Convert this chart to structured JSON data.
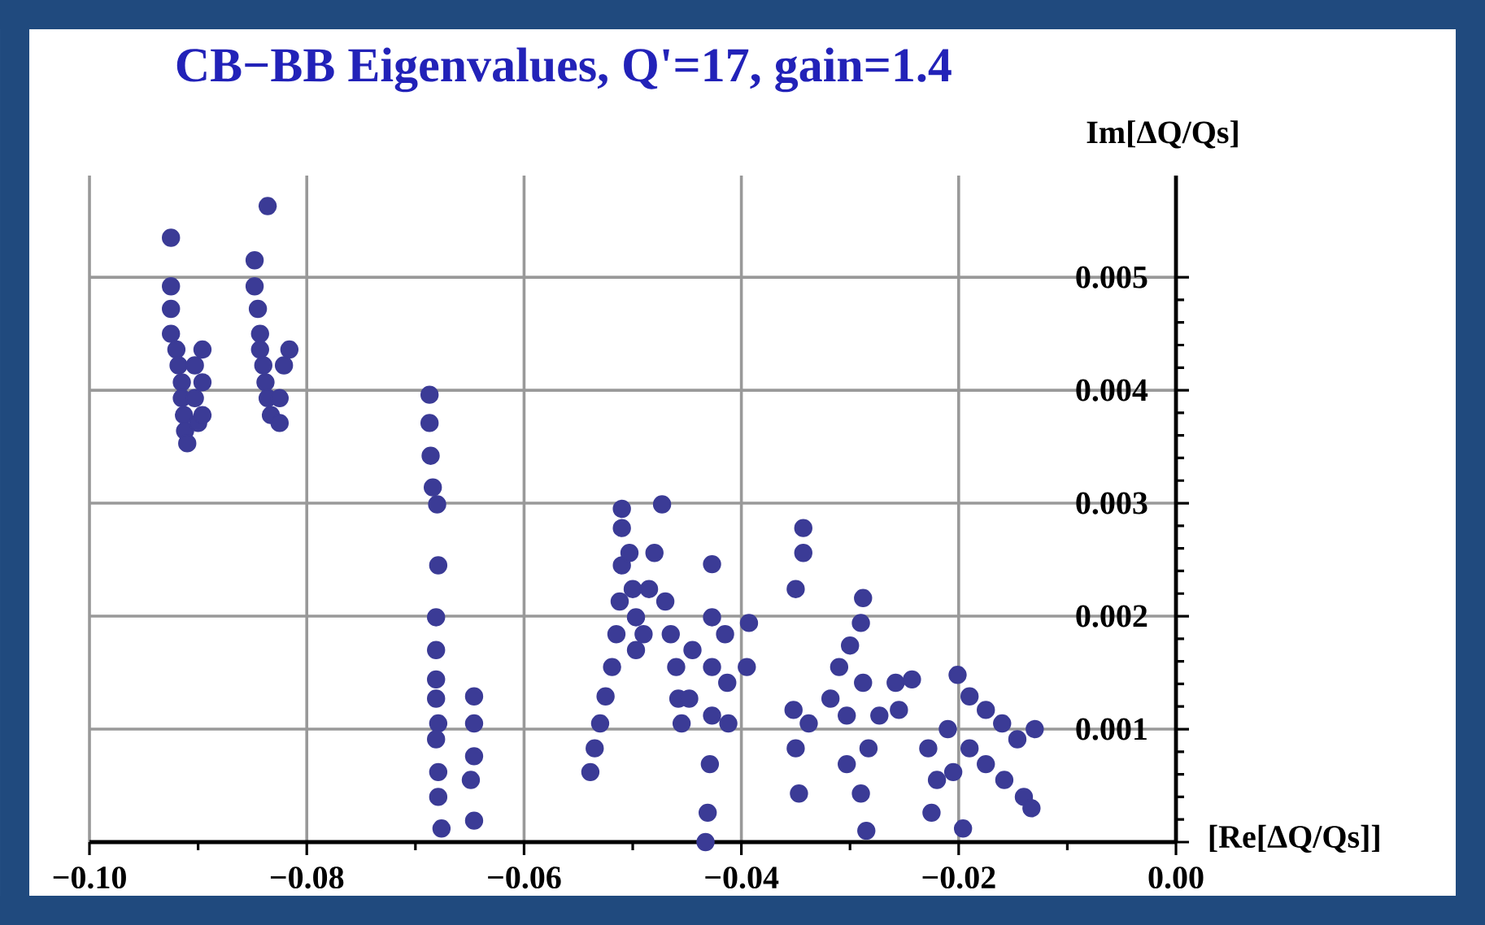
{
  "chart_data": {
    "type": "scatter",
    "title": "CB−BB Eigenvalues, Q'=17, gain=1.4",
    "xlabel": "[Re[ΔQ/Qs]]",
    "ylabel": "Im[ΔQ/Qs]",
    "color": "#3b3b96",
    "grid": true,
    "xlim": [
      -0.1,
      0
    ],
    "ylim": [
      0,
      0.0059
    ],
    "xticks": [
      {
        "value": -0.1,
        "label": "−0.10"
      },
      {
        "value": -0.08,
        "label": "−0.08"
      },
      {
        "value": -0.06,
        "label": "−0.06"
      },
      {
        "value": -0.04,
        "label": "−0.04"
      },
      {
        "value": -0.02,
        "label": "−0.02"
      },
      {
        "value": 0,
        "label": "0.00"
      }
    ],
    "yticks": [
      {
        "value": 0,
        "label": null
      },
      0.001,
      0.002,
      0.003,
      0.004,
      0.005
    ],
    "x": [
      -0.0925,
      -0.0925,
      -0.0925,
      -0.0925,
      -0.092,
      -0.0918,
      -0.0915,
      -0.0915,
      -0.0913,
      -0.0912,
      -0.091,
      -0.0903,
      -0.0903,
      -0.09,
      -0.0896,
      -0.0896,
      -0.0896,
      -0.0836,
      -0.0848,
      -0.0848,
      -0.0845,
      -0.0843,
      -0.0843,
      -0.084,
      -0.0838,
      -0.0836,
      -0.0833,
      -0.0825,
      -0.0825,
      -0.0821,
      -0.0816,
      -0.0687,
      -0.0687,
      -0.0686,
      -0.0684,
      -0.068,
      -0.0679,
      -0.0681,
      -0.0681,
      -0.0681,
      -0.0681,
      -0.0679,
      -0.0681,
      -0.0679,
      -0.0679,
      -0.0676,
      -0.0646,
      -0.0646,
      -0.0646,
      -0.0649,
      -0.0646,
      -0.0539,
      -0.0535,
      -0.053,
      -0.0525,
      -0.0519,
      -0.0515,
      -0.0512,
      -0.051,
      -0.051,
      -0.051,
      -0.0503,
      -0.05,
      -0.0497,
      -0.0497,
      -0.049,
      -0.0485,
      -0.048,
      -0.0473,
      -0.047,
      -0.0465,
      -0.046,
      -0.0458,
      -0.0455,
      -0.0448,
      -0.0445,
      -0.0427,
      -0.0427,
      -0.0427,
      -0.0427,
      -0.0429,
      -0.0431,
      -0.0433,
      -0.0415,
      -0.0413,
      -0.0412,
      -0.0393,
      -0.0395,
      -0.0343,
      -0.0343,
      -0.035,
      -0.0352,
      -0.035,
      -0.0347,
      -0.0338,
      -0.0288,
      -0.029,
      -0.03,
      -0.031,
      -0.0318,
      -0.0303,
      -0.0288,
      -0.0283,
      -0.0303,
      -0.029,
      -0.0285,
      -0.0273,
      -0.0258,
      -0.0243,
      -0.0255,
      -0.0201,
      -0.019,
      -0.0175,
      -0.016,
      -0.0146,
      -0.013,
      -0.0228,
      -0.022,
      -0.0225,
      -0.021,
      -0.019,
      -0.0175,
      -0.0158,
      -0.014,
      -0.0133,
      -0.0196,
      -0.0205
    ],
    "values": [
      0.00535,
      0.00492,
      0.00472,
      0.0045,
      0.00436,
      0.00422,
      0.00407,
      0.00393,
      0.00378,
      0.00364,
      0.00353,
      0.00422,
      0.00393,
      0.00371,
      0.00436,
      0.00407,
      0.00378,
      0.00563,
      0.00515,
      0.00492,
      0.00472,
      0.0045,
      0.00436,
      0.00422,
      0.00407,
      0.00393,
      0.00378,
      0.00371,
      0.00393,
      0.00422,
      0.00436,
      0.00396,
      0.00371,
      0.00342,
      0.00314,
      0.00299,
      0.00245,
      0.00199,
      0.0017,
      0.00144,
      0.00127,
      0.00105,
      0.00091,
      0.00062,
      0.0004,
      0.00012,
      0.00129,
      0.00105,
      0.00076,
      0.00055,
      0.00019,
      0.00062,
      0.00083,
      0.00105,
      0.00129,
      0.00155,
      0.00184,
      0.00213,
      0.00245,
      0.00278,
      0.00295,
      0.00256,
      0.00224,
      0.00199,
      0.0017,
      0.00184,
      0.00224,
      0.00256,
      0.00299,
      0.00213,
      0.00184,
      0.00155,
      0.00127,
      0.00105,
      0.00127,
      0.0017,
      0.00246,
      0.00199,
      0.00155,
      0.00112,
      0.00069,
      0.00026,
      0,
      0.00184,
      0.00141,
      0.00105,
      0.00194,
      0.00155,
      0.00278,
      0.00256,
      0.00224,
      0.00117,
      0.00083,
      0.00043,
      0.00105,
      0.00216,
      0.00194,
      0.00174,
      0.00155,
      0.00127,
      0.00112,
      0.00141,
      0.00083,
      0.00069,
      0.00043,
      0.0001,
      0.00112,
      0.00141,
      0.00144,
      0.00117,
      0.00148,
      0.00129,
      0.00117,
      0.00105,
      0.00091,
      0.001,
      0.00083,
      0.00055,
      0.00026,
      0.001,
      0.00083,
      0.00069,
      0.00055,
      0.0004,
      0.0003,
      0.00012,
      0.00062
    ]
  }
}
